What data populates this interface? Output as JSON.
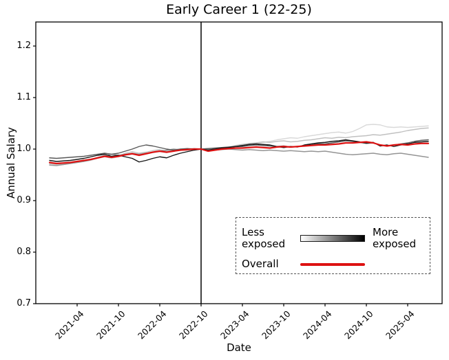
{
  "figure": {
    "title": "Early Career 1 (22-25)",
    "xlabel": "Date",
    "ylabel": "Annual Salary"
  },
  "legend": {
    "less_label": "Less exposed",
    "more_label": "More exposed",
    "overall_label": "Overall",
    "gradient_from": "#ffffff",
    "gradient_to": "#000000",
    "overall_color": "#dd1111"
  },
  "chart_data": {
    "type": "line",
    "title": "Early Career 1 (22-25)",
    "xlabel": "Date",
    "ylabel": "Annual Salary",
    "ylim": [
      0.7,
      1.247
    ],
    "y_ticks": [
      0.7,
      0.8,
      0.9,
      1.0,
      1.1,
      1.2
    ],
    "x_start_month": "2020-12",
    "x_end_month": "2025-07",
    "x_ticks": [
      {
        "label": "2021-04",
        "month_index": 4
      },
      {
        "label": "2021-10",
        "month_index": 10
      },
      {
        "label": "2022-04",
        "month_index": 16
      },
      {
        "label": "2022-10",
        "month_index": 22
      },
      {
        "label": "2023-04",
        "month_index": 28
      },
      {
        "label": "2023-10",
        "month_index": 34
      },
      {
        "label": "2024-04",
        "month_index": 40
      },
      {
        "label": "2024-10",
        "month_index": 46
      },
      {
        "label": "2025-04",
        "month_index": 52
      }
    ],
    "event_line_month_index": 22,
    "grid": false,
    "legend_position": "lower right inside",
    "series": [
      {
        "name": "exposure-quintile-1-least-exposed",
        "color": "#d9d9d9",
        "width": 1.4,
        "values": [
          0.971,
          0.97,
          0.972,
          0.973,
          0.975,
          0.976,
          0.978,
          0.982,
          0.985,
          0.982,
          0.985,
          0.988,
          0.99,
          0.988,
          0.99,
          0.993,
          0.995,
          0.993,
          0.996,
          0.998,
          0.997,
          0.999,
          1.0,
          0.999,
          1.0,
          1.002,
          1.003,
          1.004,
          1.006,
          1.008,
          1.01,
          1.013,
          1.015,
          1.018,
          1.02,
          1.022,
          1.021,
          1.024,
          1.026,
          1.028,
          1.03,
          1.032,
          1.033,
          1.031,
          1.034,
          1.04,
          1.047,
          1.048,
          1.047,
          1.043,
          1.042,
          1.043,
          1.042,
          1.043,
          1.044,
          1.045
        ]
      },
      {
        "name": "exposure-quintile-2",
        "color": "#c0c0c0",
        "width": 1.4,
        "values": [
          0.972,
          0.971,
          0.97,
          0.972,
          0.974,
          0.977,
          0.98,
          0.984,
          0.988,
          0.985,
          0.987,
          0.992,
          0.995,
          0.992,
          0.994,
          0.997,
          0.999,
          0.996,
          0.998,
          1.0,
          0.999,
          1.0,
          1.0,
          1.001,
          1.0,
          1.002,
          1.004,
          1.007,
          1.009,
          1.011,
          1.012,
          1.014,
          1.013,
          1.015,
          1.016,
          1.014,
          1.015,
          1.017,
          1.018,
          1.02,
          1.022,
          1.021,
          1.023,
          1.022,
          1.024,
          1.025,
          1.026,
          1.028,
          1.027,
          1.029,
          1.031,
          1.033,
          1.036,
          1.038,
          1.04,
          1.041
        ]
      },
      {
        "name": "exposure-quintile-3",
        "color": "#949494",
        "width": 1.4,
        "values": [
          0.969,
          0.968,
          0.97,
          0.972,
          0.974,
          0.976,
          0.979,
          0.983,
          0.987,
          0.99,
          0.988,
          0.99,
          0.992,
          0.99,
          0.992,
          0.994,
          0.996,
          0.998,
          1.0,
          0.999,
          1.0,
          1.001,
          1.0,
          0.999,
          0.998,
          0.999,
          1.0,
          0.999,
          0.998,
          0.999,
          0.998,
          0.997,
          0.998,
          0.997,
          0.996,
          0.997,
          0.996,
          0.995,
          0.996,
          0.995,
          0.996,
          0.994,
          0.992,
          0.99,
          0.989,
          0.99,
          0.991,
          0.992,
          0.99,
          0.989,
          0.991,
          0.992,
          0.99,
          0.988,
          0.986,
          0.984
        ]
      },
      {
        "name": "exposure-quintile-4",
        "color": "#585858",
        "width": 1.4,
        "values": [
          0.983,
          0.982,
          0.983,
          0.984,
          0.985,
          0.986,
          0.988,
          0.99,
          0.992,
          0.99,
          0.992,
          0.996,
          1.0,
          1.005,
          1.008,
          1.006,
          1.003,
          1.0,
          0.998,
          1.0,
          1.001,
          1.0,
          1.0,
          1.001,
          1.002,
          1.003,
          1.004,
          1.005,
          1.005,
          1.007,
          1.008,
          1.007,
          1.006,
          1.005,
          1.006,
          1.004,
          1.005,
          1.007,
          1.008,
          1.01,
          1.01,
          1.012,
          1.014,
          1.016,
          1.015,
          1.013,
          1.011,
          1.012,
          1.008,
          1.006,
          1.008,
          1.01,
          1.012,
          1.015,
          1.017,
          1.018
        ]
      },
      {
        "name": "exposure-quintile-5-most-exposed",
        "color": "#161616",
        "width": 1.4,
        "values": [
          0.978,
          0.976,
          0.977,
          0.978,
          0.98,
          0.982,
          0.985,
          0.988,
          0.99,
          0.986,
          0.988,
          0.985,
          0.982,
          0.975,
          0.978,
          0.982,
          0.985,
          0.983,
          0.988,
          0.992,
          0.995,
          0.998,
          1.0,
          0.998,
          1.0,
          1.002,
          1.003,
          1.005,
          1.007,
          1.009,
          1.01,
          1.009,
          1.008,
          1.005,
          1.003,
          1.005,
          1.004,
          1.008,
          1.01,
          1.012,
          1.013,
          1.015,
          1.016,
          1.018,
          1.016,
          1.014,
          1.012,
          1.013,
          1.006,
          1.008,
          1.005,
          1.008,
          1.01,
          1.013,
          1.014,
          1.015
        ]
      },
      {
        "name": "overall",
        "color": "#dd1111",
        "width": 2.2,
        "values": [
          0.974,
          0.972,
          0.973,
          0.974,
          0.976,
          0.978,
          0.98,
          0.983,
          0.986,
          0.984,
          0.986,
          0.989,
          0.991,
          0.988,
          0.991,
          0.994,
          0.996,
          0.994,
          0.996,
          0.998,
          0.999,
          1.0,
          1.0,
          0.996,
          0.998,
          1.0,
          1.001,
          1.002,
          1.002,
          1.003,
          1.004,
          1.003,
          1.002,
          1.004,
          1.005,
          1.004,
          1.005,
          1.006,
          1.007,
          1.008,
          1.008,
          1.009,
          1.01,
          1.012,
          1.012,
          1.013,
          1.014,
          1.012,
          1.008,
          1.006,
          1.008,
          1.009,
          1.008,
          1.01,
          1.011,
          1.011
        ]
      }
    ]
  }
}
